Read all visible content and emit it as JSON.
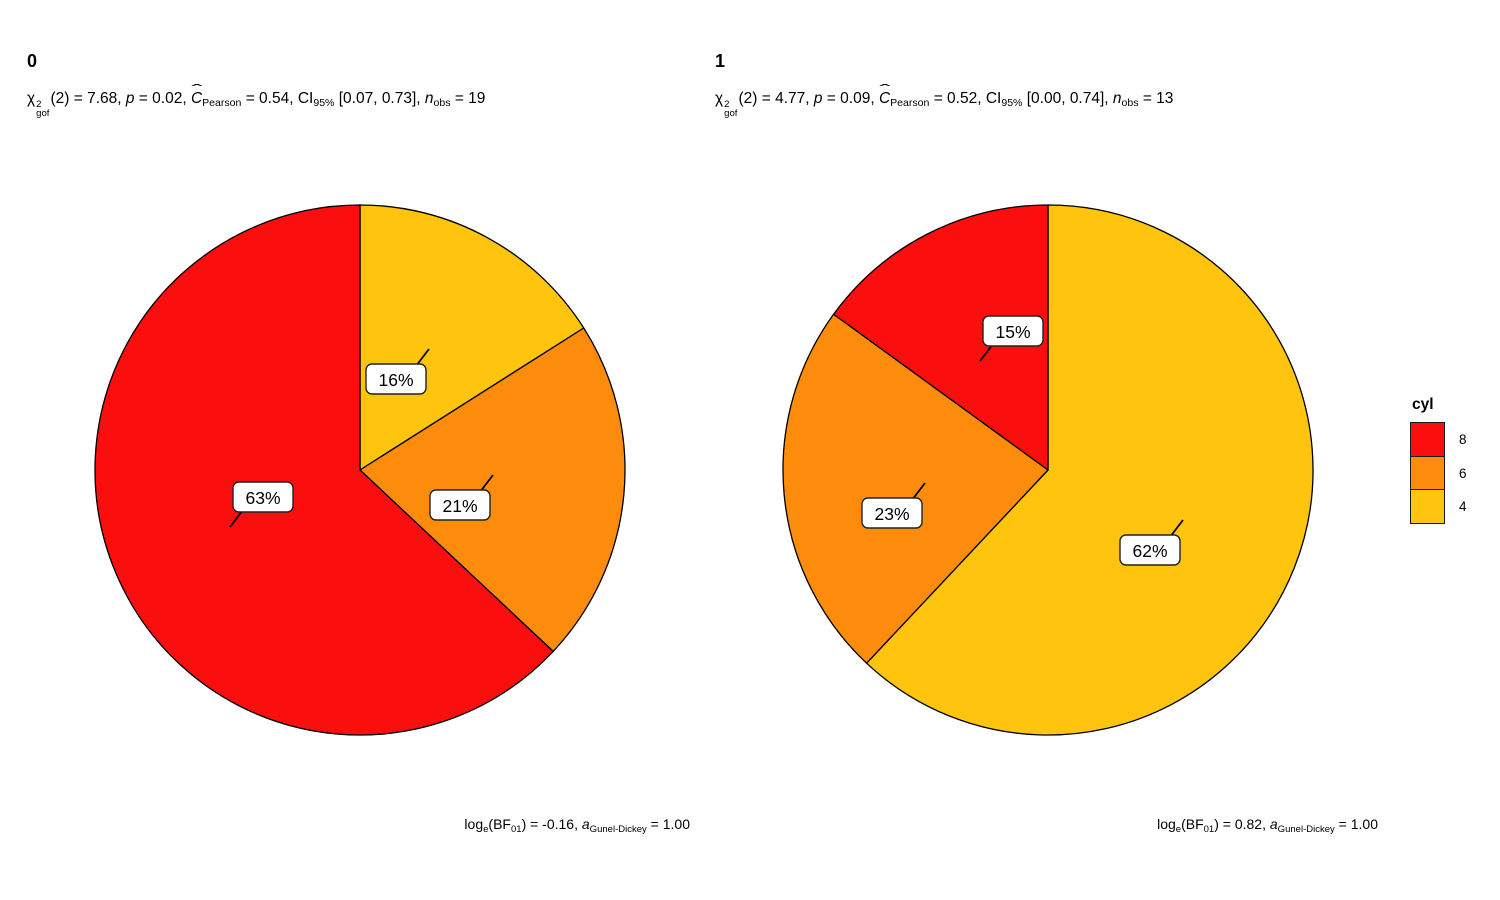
{
  "figure": {
    "background": "#ffffff",
    "kind": "grouped pie charts (ggstatsplot::grouped_ggpiestats style)"
  },
  "legend": {
    "title": "cyl",
    "items": [
      {
        "label": "8",
        "color": "#FA0E0E"
      },
      {
        "label": "6",
        "color": "#FD8C0D"
      },
      {
        "label": "4",
        "color": "#FFC40D"
      }
    ]
  },
  "chart_data": [
    {
      "type": "pie",
      "facet_label": "0",
      "categories": [
        "4",
        "6",
        "8"
      ],
      "values_percent": [
        16,
        21,
        63
      ],
      "slice_labels": [
        "16%",
        "21%",
        "63%"
      ],
      "colors": [
        "#FFC40D",
        "#FD8C0D",
        "#FA0E0E"
      ],
      "start_angle_deg": 0,
      "direction": "clockwise",
      "n_obs": 19,
      "stats": {
        "chi_sq_gof_df": 2,
        "chi_sq_gof": 7.68,
        "p": 0.02,
        "C_pearson": 0.54,
        "ci_95": [
          0.07,
          0.73
        ],
        "log_e_BF01": -0.16,
        "a_gunel_dickey": 1.0
      },
      "subtitle_parts": [
        {
          "text": "χ",
          "sup": "2",
          "subs": "gof"
        },
        {
          "text": "(2) = 7.68, "
        },
        {
          "text": "p",
          "italic": true
        },
        {
          "text": " = 0.02, "
        },
        {
          "text": "C",
          "italic": true,
          "hat": true,
          "subs": "Pearson"
        },
        {
          "text": " = 0.54, CI",
          "subs": "95%"
        },
        {
          "text": " [0.07, 0.73], "
        },
        {
          "text": "n",
          "italic": true,
          "subs": "obs"
        },
        {
          "text": " = 19"
        }
      ],
      "caption_parts": [
        {
          "text": "log",
          "subs": "e"
        },
        {
          "text": "(BF",
          "subs": "01"
        },
        {
          "text": ") = -0.16, "
        },
        {
          "text": "a",
          "italic": true,
          "subs": "Gunel-Dickey"
        },
        {
          "text": " = 1.00"
        }
      ]
    },
    {
      "type": "pie",
      "facet_label": "1",
      "categories": [
        "4",
        "6",
        "8"
      ],
      "values_percent": [
        62,
        23,
        15
      ],
      "slice_labels": [
        "62%",
        "23%",
        "15%"
      ],
      "colors": [
        "#FFC40D",
        "#FD8C0D",
        "#FA0E0E"
      ],
      "start_angle_deg": 0,
      "direction": "clockwise",
      "n_obs": 13,
      "stats": {
        "chi_sq_gof_df": 2,
        "chi_sq_gof": 4.77,
        "p": 0.09,
        "C_pearson": 0.52,
        "ci_95": [
          0.0,
          0.74
        ],
        "log_e_BF01": 0.82,
        "a_gunel_dickey": 1.0
      },
      "subtitle_parts": [
        {
          "text": "χ",
          "sup": "2",
          "subs": "gof"
        },
        {
          "text": "(2) = 4.77, "
        },
        {
          "text": "p",
          "italic": true
        },
        {
          "text": " = 0.09, "
        },
        {
          "text": "C",
          "italic": true,
          "hat": true,
          "subs": "Pearson"
        },
        {
          "text": " = 0.52, CI",
          "subs": "95%"
        },
        {
          "text": " [0.00, 0.74], "
        },
        {
          "text": "n",
          "italic": true,
          "subs": "obs"
        },
        {
          "text": " = 13"
        }
      ],
      "caption_parts": [
        {
          "text": "log",
          "subs": "e"
        },
        {
          "text": "(BF",
          "subs": "01"
        },
        {
          "text": ") = 0.82, "
        },
        {
          "text": "a",
          "italic": true,
          "subs": "Gunel-Dickey"
        },
        {
          "text": " = 1.00"
        }
      ]
    }
  ],
  "style": {
    "slice_stroke": "#000000",
    "label_box_fill": "#ffffff",
    "label_box_stroke": "#222222",
    "text_color": "#000000"
  }
}
